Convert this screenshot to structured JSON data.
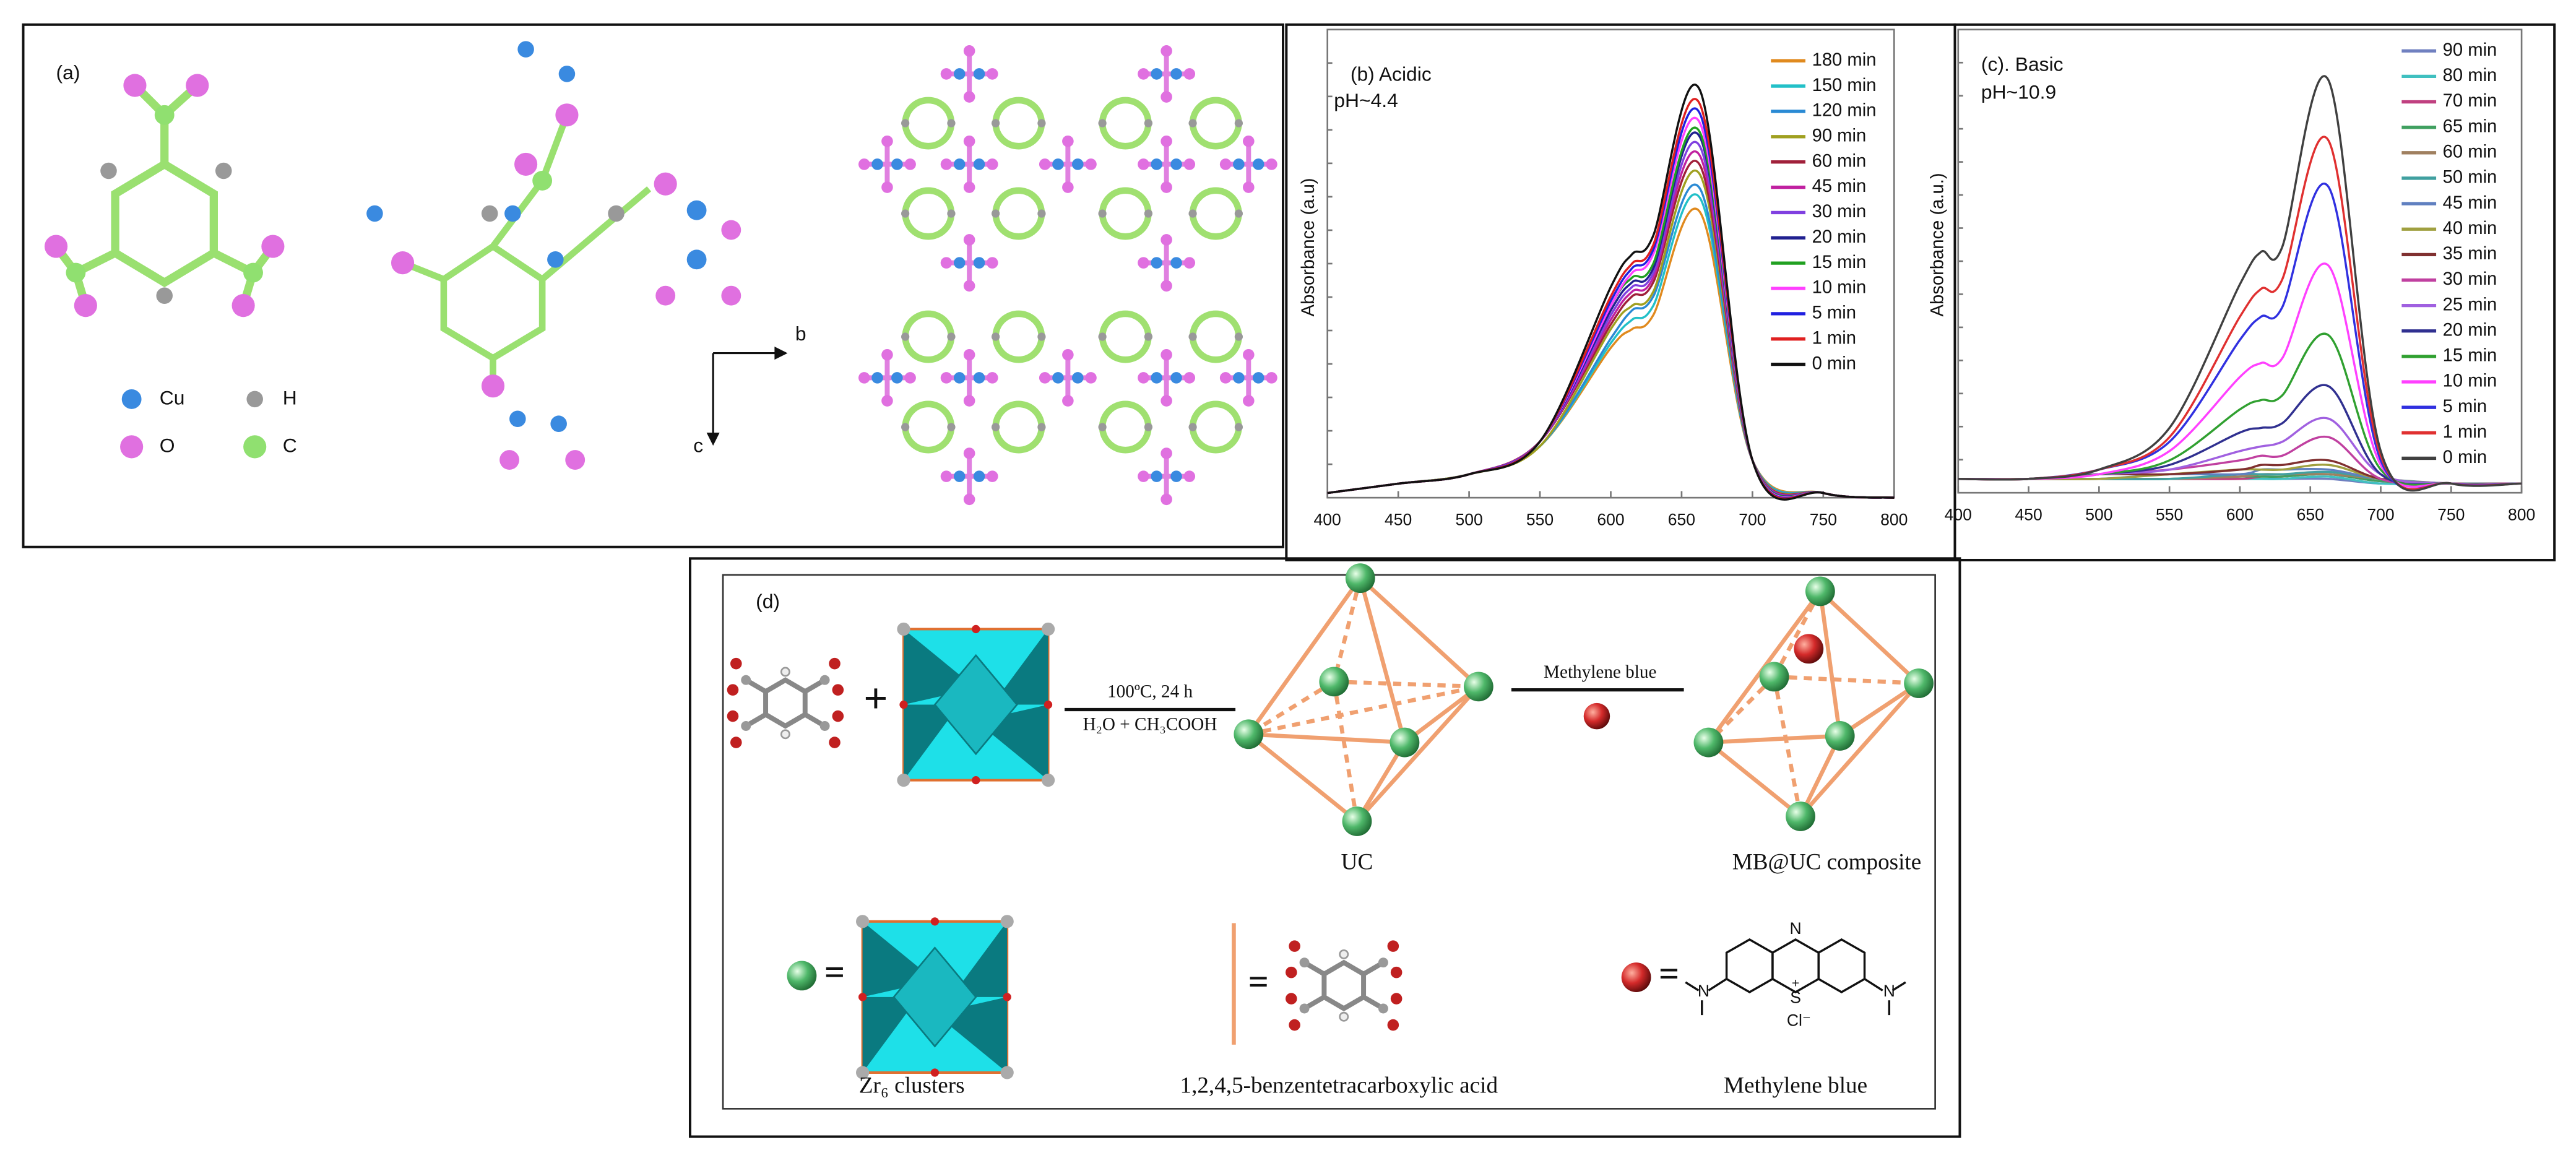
{
  "panel_a": {
    "label": "(a)",
    "legend": [
      "Cu",
      "H",
      "O",
      "C"
    ],
    "axes": [
      "b",
      "c"
    ]
  },
  "chart_data": [
    {
      "type": "line",
      "title": "(b) Acidic",
      "subtitle": "pH~4.4",
      "y_label": "Absorbance (a.u)",
      "x": [
        400,
        450,
        500,
        550,
        600,
        615,
        630,
        663,
        700,
        750,
        800
      ],
      "xlim": [
        400,
        800
      ],
      "xticks": [
        400,
        450,
        500,
        550,
        600,
        650,
        700,
        750,
        800
      ],
      "ylim": [
        0,
        1
      ],
      "series": [
        {
          "name": "180 min",
          "color": "#e08a1e",
          "values": [
            0.01,
            0.03,
            0.05,
            0.11,
            0.32,
            0.36,
            0.39,
            0.61,
            0.08,
            0.01,
            0
          ]
        },
        {
          "name": "150 min",
          "color": "#22c0c8",
          "values": [
            0.01,
            0.03,
            0.05,
            0.11,
            0.33,
            0.38,
            0.41,
            0.64,
            0.08,
            0.01,
            0
          ]
        },
        {
          "name": "120 min",
          "color": "#2a8ad4",
          "values": [
            0.01,
            0.03,
            0.05,
            0.11,
            0.34,
            0.4,
            0.43,
            0.66,
            0.08,
            0.01,
            0
          ]
        },
        {
          "name": "90 min",
          "color": "#a0a020",
          "values": [
            0.01,
            0.03,
            0.05,
            0.11,
            0.36,
            0.41,
            0.44,
            0.69,
            0.08,
            0.01,
            0
          ]
        },
        {
          "name": "60 min",
          "color": "#a0203a",
          "values": [
            0.01,
            0.03,
            0.05,
            0.12,
            0.37,
            0.43,
            0.46,
            0.71,
            0.08,
            0.01,
            0
          ]
        },
        {
          "name": "45 min",
          "color": "#c020a0",
          "values": [
            0.01,
            0.03,
            0.05,
            0.12,
            0.38,
            0.44,
            0.47,
            0.73,
            0.08,
            0.01,
            0
          ]
        },
        {
          "name": "30 min",
          "color": "#8040e0",
          "values": [
            0.01,
            0.03,
            0.05,
            0.12,
            0.39,
            0.45,
            0.48,
            0.75,
            0.08,
            0.01,
            0
          ]
        },
        {
          "name": "20 min",
          "color": "#202090",
          "values": [
            0.01,
            0.03,
            0.05,
            0.12,
            0.4,
            0.46,
            0.49,
            0.77,
            0.08,
            0.01,
            0
          ]
        },
        {
          "name": "15 min",
          "color": "#20a020",
          "values": [
            0.01,
            0.03,
            0.05,
            0.12,
            0.41,
            0.47,
            0.5,
            0.78,
            0.08,
            0.01,
            0
          ]
        },
        {
          "name": "10 min",
          "color": "#ff40ff",
          "values": [
            0.01,
            0.03,
            0.05,
            0.12,
            0.41,
            0.48,
            0.52,
            0.8,
            0.08,
            0.01,
            0
          ]
        },
        {
          "name": "5 min",
          "color": "#2020e0",
          "values": [
            0.01,
            0.03,
            0.05,
            0.12,
            0.42,
            0.49,
            0.53,
            0.82,
            0.08,
            0.01,
            0
          ]
        },
        {
          "name": "1 min",
          "color": "#e02020",
          "values": [
            0.01,
            0.03,
            0.05,
            0.12,
            0.43,
            0.5,
            0.54,
            0.84,
            0.08,
            0.01,
            0
          ]
        },
        {
          "name": "0 min",
          "color": "#111111",
          "values": [
            0.01,
            0.03,
            0.05,
            0.12,
            0.45,
            0.52,
            0.56,
            0.87,
            0.08,
            0.01,
            0
          ]
        }
      ]
    },
    {
      "type": "line",
      "title": "(c). Basic",
      "subtitle": "pH~10.9",
      "y_label": "Absorbance (a.u.)",
      "x": [
        400,
        450,
        500,
        550,
        600,
        615,
        630,
        663,
        700,
        750,
        800
      ],
      "xlim": [
        400,
        800
      ],
      "xticks": [
        400,
        450,
        500,
        550,
        600,
        650,
        700,
        750,
        800
      ],
      "ylim": [
        0,
        1
      ],
      "series": [
        {
          "name": "90 min",
          "color": "#7080c0",
          "values": [
            0.03,
            0.03,
            0.03,
            0.03,
            0.03,
            0.03,
            0.03,
            0.03,
            0.02,
            0.02,
            0.02
          ]
        },
        {
          "name": "80 min",
          "color": "#40c0c0",
          "values": [
            0.03,
            0.03,
            0.03,
            0.03,
            0.03,
            0.03,
            0.03,
            0.035,
            0.02,
            0.02,
            0.02
          ]
        },
        {
          "name": "70 min",
          "color": "#c04080",
          "values": [
            0.03,
            0.03,
            0.03,
            0.03,
            0.03,
            0.035,
            0.035,
            0.04,
            0.025,
            0.02,
            0.02
          ]
        },
        {
          "name": "65 min",
          "color": "#40a060",
          "values": [
            0.03,
            0.03,
            0.03,
            0.03,
            0.035,
            0.035,
            0.035,
            0.04,
            0.025,
            0.02,
            0.02
          ]
        },
        {
          "name": "60 min",
          "color": "#a08060",
          "values": [
            0.03,
            0.03,
            0.03,
            0.03,
            0.035,
            0.04,
            0.04,
            0.04,
            0.03,
            0.02,
            0.02
          ]
        },
        {
          "name": "50 min",
          "color": "#40a0a0",
          "values": [
            0.03,
            0.03,
            0.03,
            0.03,
            0.04,
            0.04,
            0.04,
            0.045,
            0.03,
            0.02,
            0.02
          ]
        },
        {
          "name": "45 min",
          "color": "#6080c0",
          "values": [
            0.03,
            0.03,
            0.03,
            0.04,
            0.04,
            0.05,
            0.05,
            0.05,
            0.03,
            0.02,
            0.02
          ]
        },
        {
          "name": "40 min",
          "color": "#a0a040",
          "values": [
            0.03,
            0.03,
            0.03,
            0.04,
            0.05,
            0.05,
            0.05,
            0.06,
            0.03,
            0.02,
            0.02
          ]
        },
        {
          "name": "35 min",
          "color": "#803030",
          "values": [
            0.03,
            0.03,
            0.04,
            0.04,
            0.05,
            0.06,
            0.06,
            0.07,
            0.03,
            0.02,
            0.02
          ]
        },
        {
          "name": "30 min",
          "color": "#c040a0",
          "values": [
            0.03,
            0.03,
            0.04,
            0.05,
            0.07,
            0.08,
            0.08,
            0.12,
            0.03,
            0.02,
            0.02
          ]
        },
        {
          "name": "25 min",
          "color": "#a060e0",
          "values": [
            0.03,
            0.03,
            0.04,
            0.05,
            0.09,
            0.1,
            0.11,
            0.16,
            0.04,
            0.02,
            0.02
          ]
        },
        {
          "name": "20 min",
          "color": "#303090",
          "values": [
            0.03,
            0.03,
            0.04,
            0.06,
            0.13,
            0.14,
            0.15,
            0.23,
            0.04,
            0.02,
            0.02
          ]
        },
        {
          "name": "15 min",
          "color": "#30a030",
          "values": [
            0.03,
            0.03,
            0.04,
            0.07,
            0.18,
            0.2,
            0.21,
            0.34,
            0.05,
            0.02,
            0.02
          ]
        },
        {
          "name": "10 min",
          "color": "#ff40ff",
          "values": [
            0.03,
            0.03,
            0.04,
            0.09,
            0.25,
            0.28,
            0.29,
            0.49,
            0.06,
            0.02,
            0.02
          ]
        },
        {
          "name": "5 min",
          "color": "#3030e0",
          "values": [
            0.03,
            0.03,
            0.05,
            0.11,
            0.33,
            0.38,
            0.4,
            0.66,
            0.07,
            0.02,
            0.02
          ]
        },
        {
          "name": "1 min",
          "color": "#e03030",
          "values": [
            0.03,
            0.03,
            0.05,
            0.12,
            0.38,
            0.44,
            0.46,
            0.76,
            0.08,
            0.02,
            0.02
          ]
        },
        {
          "name": "0 min",
          "color": "#404040",
          "values": [
            0.03,
            0.03,
            0.05,
            0.14,
            0.45,
            0.52,
            0.53,
            0.89,
            0.09,
            0.02,
            0.02
          ]
        }
      ]
    }
  ],
  "panel_d": {
    "label": "(d)",
    "plus": "+",
    "equals": "=",
    "condition_1": "100ºC, 24 h",
    "condition_2": "H₂O + CH₃COOH",
    "arrow_2_label": "Methylene blue",
    "product_1": "UC",
    "product_2": "MB@UC composite",
    "key_1": "Zr₆ clusters",
    "key_2": "1,2,4,5-benzentetracarboxylic acid",
    "key_3": "Methylene blue",
    "mb_atoms": [
      "N",
      "N",
      "N",
      "S",
      "+",
      "Cl⁻"
    ]
  }
}
